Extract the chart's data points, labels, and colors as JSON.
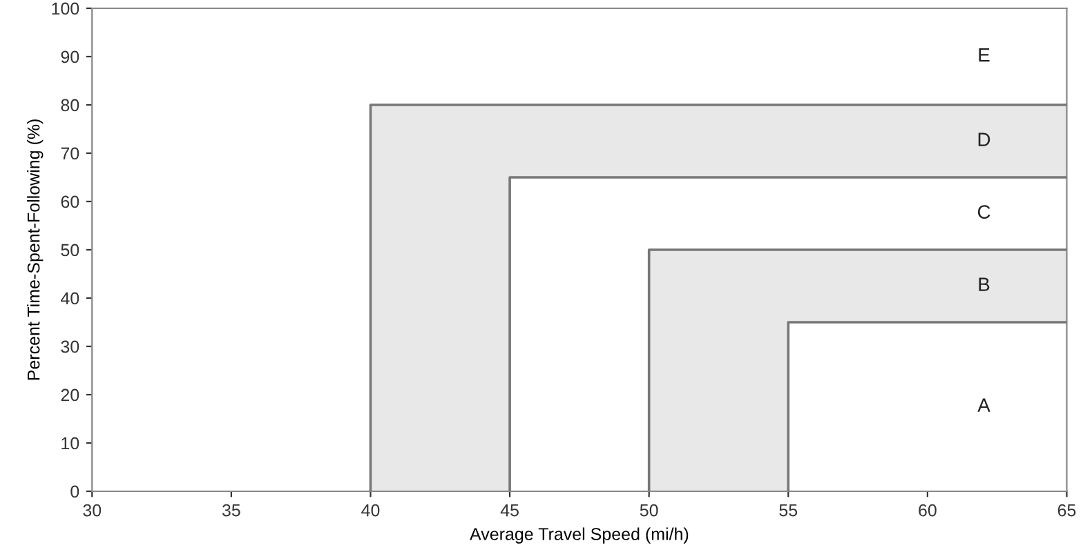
{
  "chart_data": {
    "type": "line",
    "xlabel": "Average Travel Speed (mi/h)",
    "ylabel": "Percent Time-Spent-Following (%)",
    "series": [
      {
        "x": [
          40,
          40,
          65
        ],
        "values": [
          0,
          80,
          80
        ],
        "color": "#777777"
      },
      {
        "x": [
          45,
          45,
          65
        ],
        "values": [
          0,
          65,
          65
        ],
        "color": "#777777"
      },
      {
        "x": [
          50,
          50,
          65
        ],
        "values": [
          0,
          50,
          50
        ],
        "color": "#777777"
      },
      {
        "x": [
          55,
          55,
          65
        ],
        "values": [
          0,
          35,
          35
        ],
        "color": "#777777"
      }
    ],
    "annotations": [
      "E",
      "D",
      "C",
      "B",
      "A"
    ],
    "xlim": [
      30,
      65
    ],
    "xticks": [
      30,
      35,
      40,
      45,
      50,
      55,
      60,
      65
    ],
    "ylim": [
      0,
      100
    ],
    "yticks": [
      0,
      10,
      20,
      30,
      40,
      50,
      60,
      70,
      80,
      90,
      100
    ],
    "grid": false,
    "legend": false
  }
}
